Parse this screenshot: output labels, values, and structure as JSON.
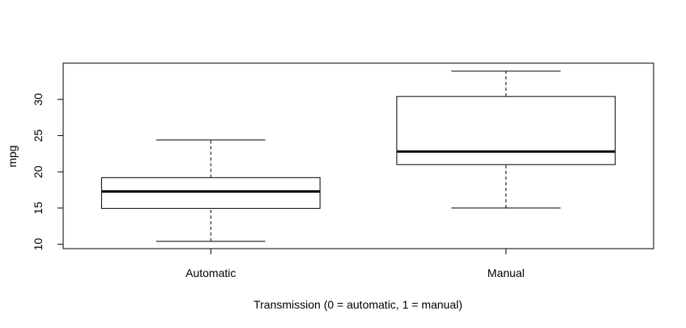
{
  "chart_data": {
    "type": "boxplot",
    "title": "",
    "xlabel": "Transmission (0 = automatic, 1 = manual)",
    "ylabel": "mpg",
    "ylim": [
      9.4,
      35.0
    ],
    "yticks": [
      10,
      15,
      20,
      25,
      30
    ],
    "categories": [
      "Automatic",
      "Manual"
    ],
    "boxes": [
      {
        "name": "Automatic",
        "whisker_low": 10.4,
        "q1": 14.95,
        "median": 17.3,
        "q3": 19.2,
        "whisker_high": 24.4
      },
      {
        "name": "Manual",
        "whisker_low": 15.0,
        "q1": 21.0,
        "median": 22.8,
        "q3": 30.4,
        "whisker_high": 33.9
      }
    ]
  }
}
